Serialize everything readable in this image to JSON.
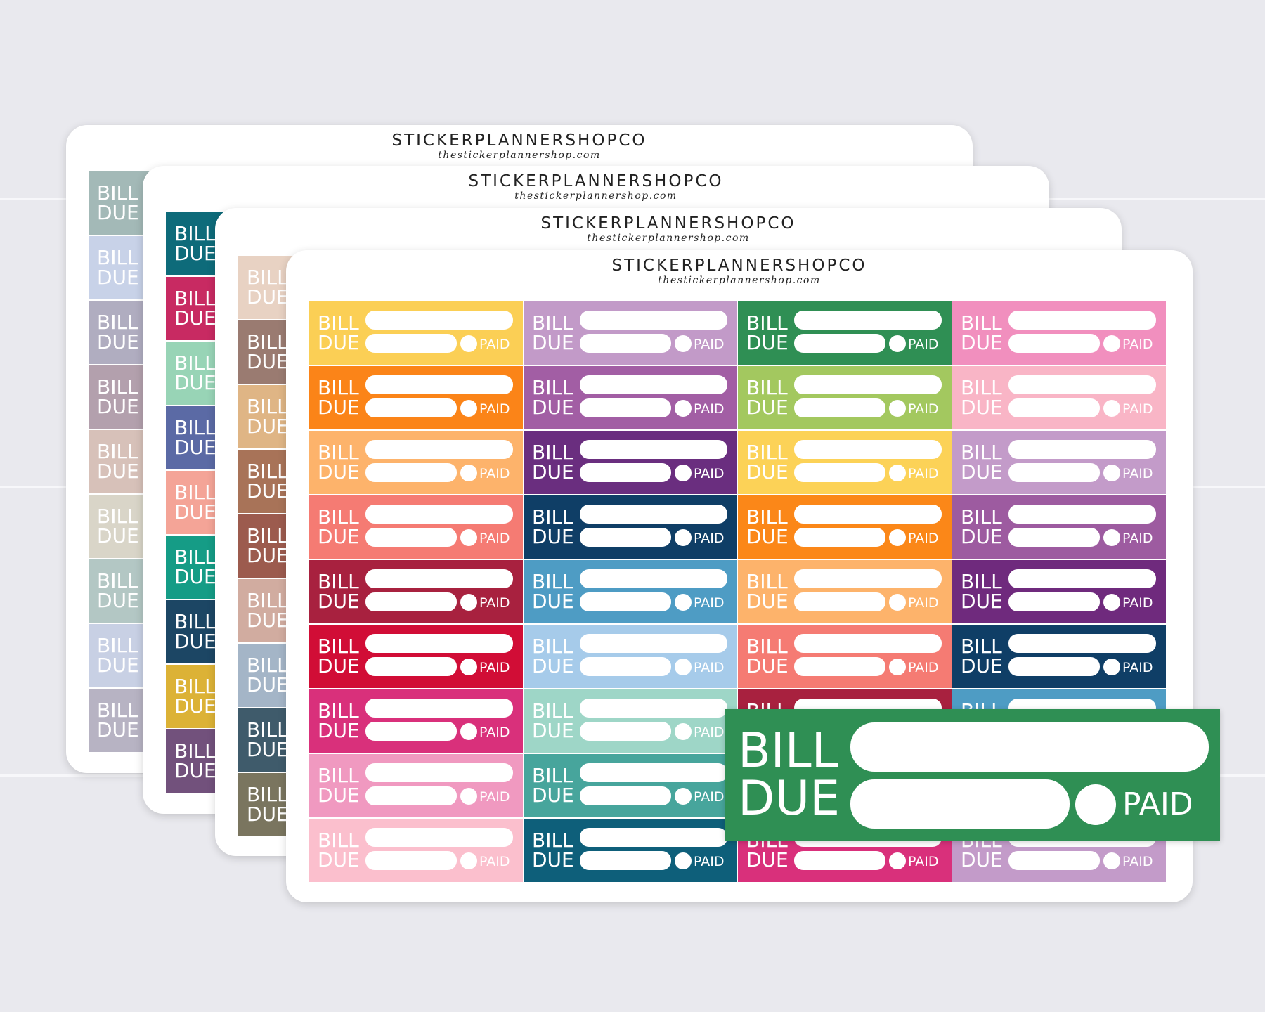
{
  "brand": "STICKERPLANNERSHOPCO",
  "website": "thestickerplannershop.com",
  "sticker_text": {
    "line1": "BILL",
    "line2": "DUE",
    "check_label": "PAID"
  },
  "background_color": "#e9e9ee",
  "sheets": [
    {
      "id": "sheet-1-pastel",
      "columns": 1,
      "colors": [
        "#a3b9b7",
        "#c8d2e8",
        "#b0adc0",
        "#b3a0ad",
        "#d7c1b9",
        "#d9d5c8",
        "#b3c7c4",
        "#c8d0e4",
        "#b7b3c3"
      ]
    },
    {
      "id": "sheet-2-jewel",
      "columns": 1,
      "colors": [
        "#0e6b7a",
        "#c82a62",
        "#98d4b6",
        "#5b6aa5",
        "#f4a497",
        "#159c86",
        "#1c4664",
        "#dcb236",
        "#72517c"
      ]
    },
    {
      "id": "sheet-3-earth",
      "columns": 1,
      "colors": [
        "#e8d2c3",
        "#9a7b71",
        "#dfb585",
        "#a87358",
        "#9c5b4e",
        "#d1aca0",
        "#a4b5c7",
        "#3f5b6b",
        "#7a755f"
      ]
    },
    {
      "id": "sheet-4-bright",
      "columns": 4,
      "colors": [
        "#fbcf55",
        "#c29ac8",
        "#2f8f54",
        "#f18fbe",
        "#fb8418",
        "#a25ea4",
        "#a3c85f",
        "#f9b5c6",
        "#fdb36b",
        "#6a2e7f",
        "#fcd257",
        "#c39bc9",
        "#f57b73",
        "#0f3e66",
        "#fb8718",
        "#9d5ba0",
        "#a8213f",
        "#4e9cc4",
        "#fdb36b",
        "#6f2a7d",
        "#d10d36",
        "#a6cbea",
        "#f57b73",
        "#0f3e66",
        "#d9307b",
        "#9ed6c7",
        "#a8213f",
        "#4e9cc4",
        "#f099c0",
        "#47a59c",
        "#d9307b",
        "#8e9ad0",
        "#fbbfcd",
        "#0e5f7a",
        "#d9307b",
        "#c39bc9"
      ]
    }
  ],
  "zoom_sticker": {
    "color": "#2f8f54"
  }
}
